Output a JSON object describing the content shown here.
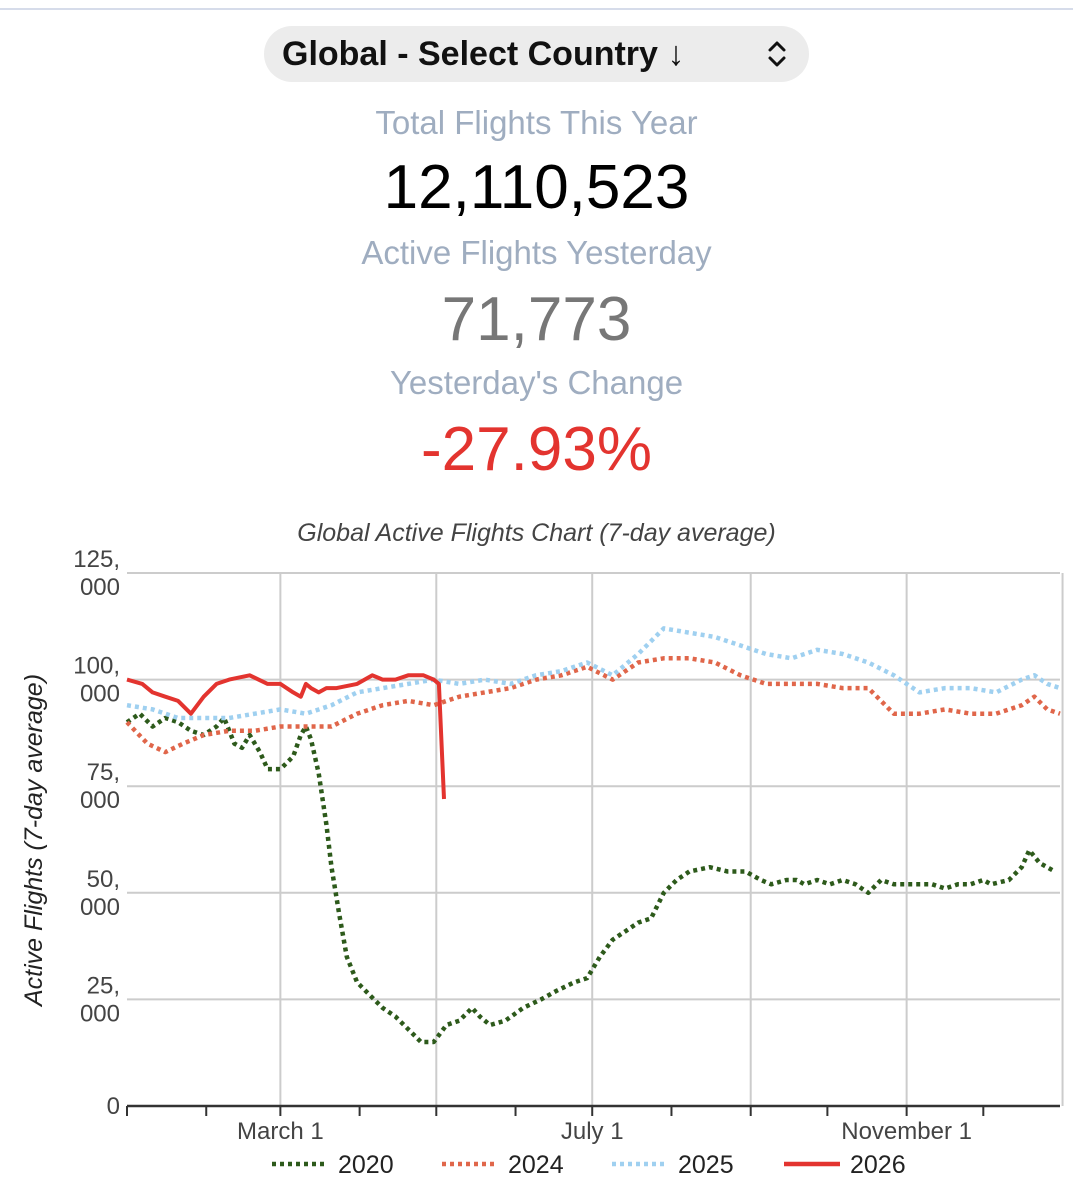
{
  "selector": {
    "label": "Global - Select Country ↓"
  },
  "stats": {
    "total_label": "Total Flights This Year",
    "total_value": "12,110,523",
    "active_label": "Active Flights Yesterday",
    "active_value": "71,773",
    "change_label": "Yesterday's Change",
    "change_value": "-27.93%"
  },
  "colors": {
    "s2020": "#2d5a1b",
    "s2024": "#e0664a",
    "s2025": "#9fd0f0",
    "s2026": "#e3342f",
    "change": "#e3342f"
  },
  "chart_data": {
    "type": "line",
    "title": "Global Active Flights Chart (7-day average)",
    "ylabel": "Active Flights (7-day average)",
    "xlabel": "",
    "ylim": [
      0,
      125000
    ],
    "xlim": [
      0,
      365
    ],
    "yticks": [
      {
        "value": 0,
        "label": "0"
      },
      {
        "value": 25000,
        "label": "25,\n000"
      },
      {
        "value": 50000,
        "label": "50,\n000"
      },
      {
        "value": 75000,
        "label": "75,\n000"
      },
      {
        "value": 100000,
        "label": "100,\n000"
      },
      {
        "value": 125000,
        "label": "125,\n000"
      }
    ],
    "xticks": [
      {
        "value": 60,
        "label": "March 1"
      },
      {
        "value": 182,
        "label": "July 1"
      },
      {
        "value": 305,
        "label": "November 1"
      }
    ],
    "x_gridlines": [
      60,
      121,
      182,
      244,
      305,
      366
    ],
    "x_minor_ticks": [
      0,
      31,
      60,
      91,
      121,
      152,
      182,
      213,
      244,
      274,
      305,
      335
    ],
    "legend_position": "bottom",
    "series": [
      {
        "name": "2020",
        "style": "dotted",
        "color_key": "s2020",
        "points": [
          [
            0,
            90000
          ],
          [
            5,
            92000
          ],
          [
            10,
            89000
          ],
          [
            15,
            91000
          ],
          [
            20,
            90000
          ],
          [
            25,
            88000
          ],
          [
            30,
            87000
          ],
          [
            35,
            89000
          ],
          [
            38,
            91000
          ],
          [
            42,
            85000
          ],
          [
            45,
            84000
          ],
          [
            48,
            87000
          ],
          [
            52,
            83000
          ],
          [
            55,
            79000
          ],
          [
            60,
            79000
          ],
          [
            65,
            82000
          ],
          [
            68,
            87000
          ],
          [
            70,
            89000
          ],
          [
            72,
            86000
          ],
          [
            75,
            78000
          ],
          [
            78,
            66000
          ],
          [
            80,
            56000
          ],
          [
            83,
            45000
          ],
          [
            86,
            35000
          ],
          [
            90,
            29000
          ],
          [
            95,
            26000
          ],
          [
            100,
            23000
          ],
          [
            105,
            21000
          ],
          [
            110,
            18000
          ],
          [
            115,
            15000
          ],
          [
            120,
            15000
          ],
          [
            125,
            19000
          ],
          [
            130,
            20000
          ],
          [
            135,
            23000
          ],
          [
            138,
            21000
          ],
          [
            142,
            19000
          ],
          [
            148,
            20000
          ],
          [
            155,
            23000
          ],
          [
            162,
            25000
          ],
          [
            168,
            27000
          ],
          [
            175,
            29000
          ],
          [
            180,
            30000
          ],
          [
            185,
            35000
          ],
          [
            190,
            39000
          ],
          [
            195,
            41000
          ],
          [
            200,
            43000
          ],
          [
            205,
            44000
          ],
          [
            210,
            50000
          ],
          [
            215,
            53000
          ],
          [
            220,
            55000
          ],
          [
            228,
            56000
          ],
          [
            235,
            55000
          ],
          [
            242,
            55000
          ],
          [
            248,
            53000
          ],
          [
            252,
            52000
          ],
          [
            258,
            53000
          ],
          [
            262,
            53000
          ],
          [
            265,
            52000
          ],
          [
            270,
            53000
          ],
          [
            275,
            52000
          ],
          [
            280,
            53000
          ],
          [
            285,
            52000
          ],
          [
            290,
            50000
          ],
          [
            295,
            53000
          ],
          [
            300,
            52000
          ],
          [
            305,
            52000
          ],
          [
            310,
            52000
          ],
          [
            315,
            52000
          ],
          [
            320,
            51000
          ],
          [
            325,
            52000
          ],
          [
            330,
            52000
          ],
          [
            335,
            53000
          ],
          [
            338,
            52000
          ],
          [
            345,
            53000
          ],
          [
            350,
            56000
          ],
          [
            353,
            60000
          ],
          [
            357,
            57000
          ],
          [
            363,
            55000
          ]
        ]
      },
      {
        "name": "2024",
        "style": "dotted",
        "color_key": "s2024",
        "points": [
          [
            0,
            90000
          ],
          [
            8,
            85000
          ],
          [
            15,
            83000
          ],
          [
            22,
            85000
          ],
          [
            30,
            87000
          ],
          [
            40,
            88000
          ],
          [
            50,
            88000
          ],
          [
            60,
            89000
          ],
          [
            70,
            89000
          ],
          [
            80,
            89000
          ],
          [
            90,
            92000
          ],
          [
            100,
            94000
          ],
          [
            110,
            95000
          ],
          [
            120,
            94000
          ],
          [
            130,
            96000
          ],
          [
            140,
            97000
          ],
          [
            150,
            98000
          ],
          [
            160,
            100000
          ],
          [
            170,
            101000
          ],
          [
            180,
            103000
          ],
          [
            190,
            100000
          ],
          [
            200,
            104000
          ],
          [
            210,
            105000
          ],
          [
            220,
            105000
          ],
          [
            230,
            104000
          ],
          [
            240,
            101000
          ],
          [
            250,
            99000
          ],
          [
            260,
            99000
          ],
          [
            270,
            99000
          ],
          [
            280,
            98000
          ],
          [
            290,
            98000
          ],
          [
            300,
            92000
          ],
          [
            310,
            92000
          ],
          [
            320,
            93000
          ],
          [
            330,
            92000
          ],
          [
            340,
            92000
          ],
          [
            350,
            94000
          ],
          [
            355,
            96000
          ],
          [
            360,
            93000
          ],
          [
            365,
            92000
          ]
        ]
      },
      {
        "name": "2025",
        "style": "dotted",
        "color_key": "s2025",
        "points": [
          [
            0,
            94000
          ],
          [
            10,
            93000
          ],
          [
            20,
            91000
          ],
          [
            30,
            91000
          ],
          [
            40,
            91000
          ],
          [
            50,
            92000
          ],
          [
            60,
            93000
          ],
          [
            70,
            92000
          ],
          [
            80,
            94000
          ],
          [
            90,
            97000
          ],
          [
            100,
            98000
          ],
          [
            110,
            99000
          ],
          [
            120,
            100000
          ],
          [
            130,
            99000
          ],
          [
            140,
            100000
          ],
          [
            150,
            99000
          ],
          [
            160,
            101000
          ],
          [
            170,
            102000
          ],
          [
            180,
            104000
          ],
          [
            190,
            101000
          ],
          [
            200,
            106000
          ],
          [
            210,
            112000
          ],
          [
            220,
            111000
          ],
          [
            230,
            110000
          ],
          [
            240,
            108000
          ],
          [
            250,
            106000
          ],
          [
            260,
            105000
          ],
          [
            270,
            107000
          ],
          [
            280,
            106000
          ],
          [
            290,
            104000
          ],
          [
            300,
            101000
          ],
          [
            310,
            97000
          ],
          [
            320,
            98000
          ],
          [
            330,
            98000
          ],
          [
            340,
            97000
          ],
          [
            350,
            100000
          ],
          [
            355,
            101000
          ],
          [
            360,
            99000
          ],
          [
            365,
            98000
          ]
        ]
      },
      {
        "name": "2026",
        "style": "solid",
        "color_key": "s2026",
        "points": [
          [
            0,
            100000
          ],
          [
            6,
            99000
          ],
          [
            10,
            97000
          ],
          [
            15,
            96000
          ],
          [
            20,
            95000
          ],
          [
            25,
            92000
          ],
          [
            30,
            96000
          ],
          [
            35,
            99000
          ],
          [
            40,
            100000
          ],
          [
            48,
            101000
          ],
          [
            55,
            99000
          ],
          [
            60,
            99000
          ],
          [
            65,
            97000
          ],
          [
            68,
            96000
          ],
          [
            70,
            99000
          ],
          [
            72,
            98000
          ],
          [
            75,
            97000
          ],
          [
            78,
            98000
          ],
          [
            82,
            98000
          ],
          [
            90,
            99000
          ],
          [
            96,
            101000
          ],
          [
            100,
            100000
          ],
          [
            105,
            100000
          ],
          [
            110,
            101000
          ],
          [
            116,
            101000
          ],
          [
            120,
            100000
          ],
          [
            122,
            99000
          ],
          [
            124,
            72000
          ]
        ]
      }
    ]
  }
}
